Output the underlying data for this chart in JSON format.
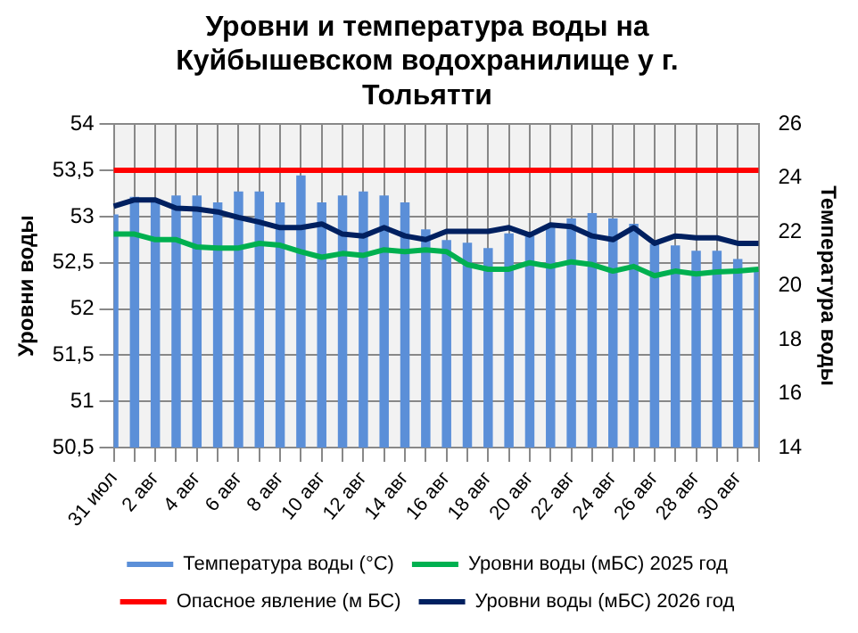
{
  "chart_data": {
    "type": "bar",
    "title": "Уровни и температура воды на Куйбышевском водохранилище у г. Тольятти",
    "ylabel": "Уровни воды",
    "y2label": "Температура воды",
    "categories": [
      "31 июл",
      null,
      "2 авг",
      null,
      "4 авг",
      null,
      "6 авг",
      null,
      "8 авг",
      null,
      "10 авг",
      null,
      "12 авг",
      null,
      "14 авг",
      null,
      "16 авг",
      null,
      "18 авг",
      null,
      "20 авг",
      null,
      "22 авг",
      null,
      "24 авг",
      null,
      "26 авг",
      null,
      "28 авг",
      null,
      "30 авг",
      null
    ],
    "series": [
      {
        "name": "Температура воды (°C)",
        "axis": "y2",
        "color": "#5b8fd8",
        "values": [
          22.65,
          23.3,
          23.2,
          23.35,
          23.35,
          23.1,
          23.5,
          23.5,
          23.1,
          24.1,
          23.1,
          23.35,
          23.5,
          23.35,
          23.1,
          22.1,
          21.7,
          21.6,
          21.4,
          21.95,
          21.85,
          22.2,
          22.5,
          22.7,
          22.5,
          22.3,
          21.55,
          21.5,
          21.3,
          21.3,
          21.0,
          20.6
        ]
      },
      {
        "name": "Уровни воды (мБС) 2025 год",
        "type": "line",
        "color": "#00b050",
        "values": [
          52.81,
          52.81,
          52.75,
          52.75,
          52.67,
          52.66,
          52.66,
          52.71,
          52.69,
          52.62,
          52.56,
          52.6,
          52.58,
          52.64,
          52.62,
          52.64,
          52.62,
          52.48,
          52.43,
          52.43,
          52.5,
          52.46,
          52.51,
          52.48,
          52.41,
          52.46,
          52.36,
          52.41,
          52.38,
          52.4,
          52.41,
          52.43
        ]
      },
      {
        "name": "Опасное явление (м БС)",
        "type": "line",
        "color": "#ff0000",
        "values": [
          53.5,
          53.5,
          53.5,
          53.5,
          53.5,
          53.5,
          53.5,
          53.5,
          53.5,
          53.5,
          53.5,
          53.5,
          53.5,
          53.5,
          53.5,
          53.5,
          53.5,
          53.5,
          53.5,
          53.5,
          53.5,
          53.5,
          53.5,
          53.5,
          53.5,
          53.5,
          53.5,
          53.5,
          53.5,
          53.5,
          53.5,
          53.5
        ]
      },
      {
        "name": "Уровни воды (мБС) 2026 год",
        "type": "line",
        "color": "#002060",
        "values": [
          53.11,
          53.18,
          53.18,
          53.09,
          53.08,
          53.05,
          52.99,
          52.94,
          52.88,
          52.88,
          52.92,
          52.81,
          52.79,
          52.88,
          52.79,
          52.75,
          52.84,
          52.84,
          52.84,
          52.88,
          52.8,
          52.91,
          52.89,
          52.79,
          52.75,
          52.88,
          52.71,
          52.79,
          52.77,
          52.77,
          52.71,
          52.71
        ]
      }
    ],
    "ylim": [
      50.5,
      54
    ],
    "yticks": [
      {
        "value": 50.5,
        "label": "50,5"
      },
      51,
      {
        "value": 51.5,
        "label": "51,5"
      },
      52,
      {
        "value": 52.5,
        "label": "52,5"
      },
      53,
      {
        "value": 53.5,
        "label": "53,5"
      },
      54
    ],
    "y2lim": [
      14,
      26
    ],
    "y2ticks": [
      14,
      16,
      18,
      20,
      22,
      24,
      26
    ],
    "grid": true,
    "legend": "bottom",
    "marker": "none",
    "line_style": "solid"
  }
}
